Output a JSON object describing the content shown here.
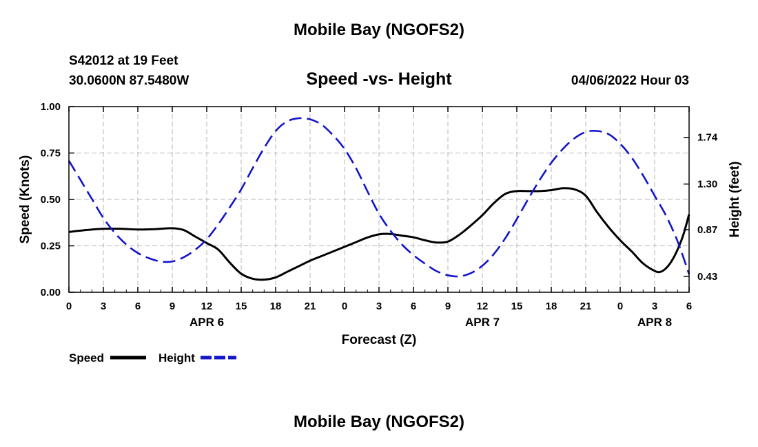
{
  "header": {
    "title": "Mobile Bay (NGOFS2)",
    "station": "S42012 at 19 Feet",
    "coordinates": "30.0600N  87.5480W",
    "subtitle": "Speed -vs- Height",
    "datetime": "04/06/2022 Hour 03"
  },
  "footer": {
    "title": "Mobile Bay (NGOFS2)"
  },
  "chart_data": {
    "type": "line",
    "xlabel": "Forecast (Z)",
    "x_ticks": [
      "0",
      "3",
      "6",
      "9",
      "12",
      "15",
      "18",
      "21",
      "0",
      "3",
      "6",
      "9",
      "12",
      "15",
      "18",
      "21",
      "0",
      "3",
      "6"
    ],
    "x_date_labels": [
      {
        "label": "APR 6",
        "hour": 12
      },
      {
        "label": "APR 7",
        "hour": 36
      },
      {
        "label": "APR 8",
        "hour": 51
      }
    ],
    "xlim": [
      0,
      54
    ],
    "ylabel_left": "Speed (Knots)",
    "ylim_left": [
      0,
      1
    ],
    "y_ticks_left": [
      "0.00",
      "0.25",
      "0.50",
      "0.75",
      "1.00"
    ],
    "ylabel_right": "Height (feet)",
    "y_ticks_right": [
      {
        "label": "0.43",
        "value": 0.43
      },
      {
        "label": "0.87",
        "value": 0.87
      },
      {
        "label": "1.30",
        "value": 1.3
      },
      {
        "label": "1.74",
        "value": 1.74
      }
    ],
    "ylim_right": [
      0.28,
      2.03
    ],
    "grid": true,
    "series": [
      {
        "name": "Speed",
        "axis": "left",
        "color": "#000000",
        "dash": "solid",
        "points": [
          [
            0,
            0.325
          ],
          [
            1.5,
            0.335
          ],
          [
            3,
            0.342
          ],
          [
            4.5,
            0.342
          ],
          [
            6,
            0.338
          ],
          [
            7.5,
            0.34
          ],
          [
            9,
            0.345
          ],
          [
            10,
            0.335
          ],
          [
            11,
            0.3
          ],
          [
            12,
            0.265
          ],
          [
            13,
            0.23
          ],
          [
            14,
            0.16
          ],
          [
            15,
            0.1
          ],
          [
            16,
            0.073
          ],
          [
            17,
            0.068
          ],
          [
            18,
            0.08
          ],
          [
            19,
            0.11
          ],
          [
            20,
            0.14
          ],
          [
            21,
            0.17
          ],
          [
            22,
            0.195
          ],
          [
            23,
            0.22
          ],
          [
            24,
            0.245
          ],
          [
            25,
            0.27
          ],
          [
            26,
            0.295
          ],
          [
            27,
            0.312
          ],
          [
            28,
            0.314
          ],
          [
            29,
            0.305
          ],
          [
            30,
            0.296
          ],
          [
            31,
            0.28
          ],
          [
            32,
            0.268
          ],
          [
            33,
            0.273
          ],
          [
            34,
            0.31
          ],
          [
            35,
            0.36
          ],
          [
            36,
            0.415
          ],
          [
            37,
            0.48
          ],
          [
            38,
            0.53
          ],
          [
            39,
            0.545
          ],
          [
            40,
            0.545
          ],
          [
            41,
            0.545
          ],
          [
            42,
            0.55
          ],
          [
            43,
            0.56
          ],
          [
            44,
            0.555
          ],
          [
            45,
            0.52
          ],
          [
            46,
            0.43
          ],
          [
            47,
            0.35
          ],
          [
            48,
            0.28
          ],
          [
            49,
            0.22
          ],
          [
            50,
            0.155
          ],
          [
            51,
            0.115
          ],
          [
            51.5,
            0.11
          ],
          [
            52,
            0.13
          ],
          [
            52.5,
            0.17
          ],
          [
            53,
            0.23
          ],
          [
            53.5,
            0.31
          ],
          [
            54,
            0.42
          ]
        ]
      },
      {
        "name": "Height",
        "axis": "right",
        "color": "#1414c8",
        "dash": "dashed",
        "points": [
          [
            0,
            1.52
          ],
          [
            1,
            1.34
          ],
          [
            2,
            1.16
          ],
          [
            3,
            0.98
          ],
          [
            4,
            0.84
          ],
          [
            5,
            0.73
          ],
          [
            6,
            0.65
          ],
          [
            7,
            0.6
          ],
          [
            8,
            0.57
          ],
          [
            9,
            0.57
          ],
          [
            10,
            0.61
          ],
          [
            11,
            0.68
          ],
          [
            12,
            0.78
          ],
          [
            13,
            0.92
          ],
          [
            14,
            1.08
          ],
          [
            15,
            1.25
          ],
          [
            16,
            1.45
          ],
          [
            17,
            1.64
          ],
          [
            18,
            1.8
          ],
          [
            19,
            1.89
          ],
          [
            20,
            1.92
          ],
          [
            21,
            1.91
          ],
          [
            22,
            1.86
          ],
          [
            23,
            1.76
          ],
          [
            24,
            1.63
          ],
          [
            25,
            1.45
          ],
          [
            26,
            1.23
          ],
          [
            27,
            1.02
          ],
          [
            28,
            0.86
          ],
          [
            29,
            0.73
          ],
          [
            30,
            0.63
          ],
          [
            31,
            0.55
          ],
          [
            32,
            0.48
          ],
          [
            33,
            0.44
          ],
          [
            34,
            0.43
          ],
          [
            35,
            0.46
          ],
          [
            36,
            0.53
          ],
          [
            37,
            0.64
          ],
          [
            38,
            0.79
          ],
          [
            39,
            0.97
          ],
          [
            40,
            1.16
          ],
          [
            41,
            1.34
          ],
          [
            42,
            1.5
          ],
          [
            43,
            1.63
          ],
          [
            44,
            1.73
          ],
          [
            45,
            1.79
          ],
          [
            46,
            1.8
          ],
          [
            47,
            1.77
          ],
          [
            48,
            1.68
          ],
          [
            49,
            1.55
          ],
          [
            50,
            1.38
          ],
          [
            51,
            1.19
          ],
          [
            52,
            1.0
          ],
          [
            53,
            0.76
          ],
          [
            54,
            0.45
          ]
        ]
      }
    ],
    "legend": {
      "placement": "bottom-left",
      "entries": [
        "Speed",
        "Height"
      ]
    }
  }
}
